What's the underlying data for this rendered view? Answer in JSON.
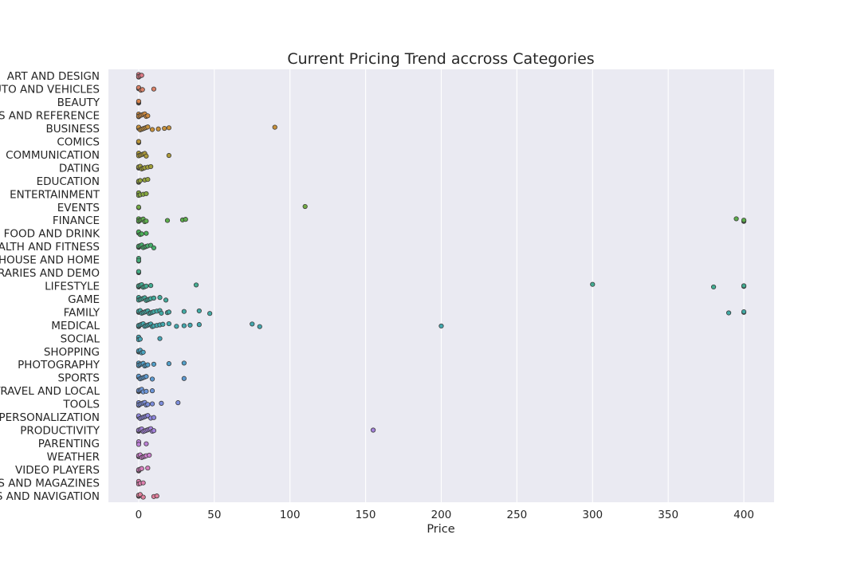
{
  "chart_data": {
    "type": "scatter",
    "title": "Current Pricing Trend accross Categories",
    "xlabel": "Price",
    "ylabel": "",
    "xlim": [
      -20,
      420
    ],
    "x_ticks": [
      0,
      50,
      100,
      150,
      200,
      250,
      300,
      350,
      400
    ],
    "grid": true,
    "legend": "none",
    "categories": [
      {
        "name": "ART AND DESIGN",
        "color": "#dd7a86",
        "values": [
          0,
          0,
          0,
          1.0,
          2.0
        ]
      },
      {
        "name": "AUTO AND VEHICLES",
        "color": "#dc8268",
        "values": [
          0,
          0,
          0,
          1.5,
          2.5,
          10
        ]
      },
      {
        "name": "BEAUTY",
        "color": "#d7844d",
        "values": [
          0,
          0,
          0,
          0
        ]
      },
      {
        "name": "BOOKS AND REFERENCE",
        "color": "#cf8a3f",
        "values": [
          0,
          0,
          0,
          1,
          2,
          3,
          4,
          5,
          6
        ]
      },
      {
        "name": "BUSINESS",
        "color": "#c8913a",
        "values": [
          0,
          0,
          0,
          1,
          2,
          3,
          4,
          5,
          6,
          9,
          13,
          17,
          20,
          90
        ]
      },
      {
        "name": "COMICS",
        "color": "#bb9639",
        "values": [
          0,
          0,
          0
        ]
      },
      {
        "name": "COMMUNICATION",
        "color": "#ad9a39",
        "values": [
          0,
          0,
          0,
          1,
          2,
          3,
          4,
          5,
          20
        ]
      },
      {
        "name": "DATING",
        "color": "#a09e3a",
        "values": [
          0,
          0,
          0,
          1,
          2,
          3,
          4,
          6,
          8
        ]
      },
      {
        "name": "EDUCATION",
        "color": "#93a33c",
        "values": [
          0,
          0,
          0,
          1,
          4,
          6
        ]
      },
      {
        "name": "ENTERTAINMENT",
        "color": "#84a63f",
        "values": [
          0,
          0,
          0,
          1,
          3,
          5
        ]
      },
      {
        "name": "EVENTS",
        "color": "#73aa45",
        "values": [
          0,
          0,
          110
        ]
      },
      {
        "name": "FINANCE",
        "color": "#5dad4c",
        "values": [
          0,
          0,
          0,
          1,
          2,
          3,
          4,
          5,
          19,
          29,
          31,
          395,
          400,
          400,
          400
        ]
      },
      {
        "name": "FOOD AND DRINK",
        "color": "#4aaf58",
        "values": [
          0,
          0,
          0,
          1,
          2,
          5
        ]
      },
      {
        "name": "HEALTH AND FITNESS",
        "color": "#46ae6b",
        "values": [
          0,
          0,
          0,
          1,
          2,
          3,
          4,
          5,
          6,
          8,
          10
        ]
      },
      {
        "name": "HOUSE AND HOME",
        "color": "#45ad7a",
        "values": [
          0,
          0,
          0
        ]
      },
      {
        "name": "LIBRARIES AND DEMO",
        "color": "#44ad86",
        "values": [
          0,
          0,
          0
        ]
      },
      {
        "name": "LIFESTYLE",
        "color": "#43ac92",
        "values": [
          0,
          0,
          0,
          1,
          2,
          3,
          4,
          5,
          8,
          38,
          300,
          380,
          400,
          400
        ]
      },
      {
        "name": "GAME",
        "color": "#42ab9c",
        "values": [
          0,
          0,
          0,
          1,
          2,
          3,
          4,
          5,
          6,
          7,
          8,
          10,
          14,
          18
        ]
      },
      {
        "name": "FAMILY",
        "color": "#42aaa5",
        "values": [
          0,
          0,
          0,
          1,
          2,
          3,
          4,
          5,
          6,
          7,
          8,
          9,
          10,
          12,
          14,
          15,
          19,
          20,
          30,
          40,
          47,
          390,
          400,
          400
        ]
      },
      {
        "name": "MEDICAL",
        "color": "#43a8ae",
        "values": [
          0,
          0,
          0,
          1,
          2,
          3,
          4,
          5,
          6,
          7,
          8,
          9,
          10,
          12,
          14,
          16,
          20,
          25,
          30,
          34,
          40,
          75,
          80,
          200
        ]
      },
      {
        "name": "SOCIAL",
        "color": "#46a6b7",
        "values": [
          0,
          0,
          0,
          1,
          14
        ]
      },
      {
        "name": "SHOPPING",
        "color": "#4aa3c0",
        "values": [
          0,
          0,
          0,
          1,
          2,
          3
        ]
      },
      {
        "name": "PHOTOGRAPHY",
        "color": "#529fc9",
        "values": [
          0,
          0,
          0,
          1,
          2,
          3,
          4,
          5,
          6,
          10,
          20,
          30
        ]
      },
      {
        "name": "SPORTS",
        "color": "#5d9ad1",
        "values": [
          0,
          0,
          0,
          1,
          2,
          3,
          4,
          5,
          9,
          30
        ]
      },
      {
        "name": "TRAVEL AND LOCAL",
        "color": "#6c95d8",
        "values": [
          0,
          0,
          0,
          1,
          2,
          3,
          5,
          9
        ]
      },
      {
        "name": "TOOLS",
        "color": "#7d8edd",
        "values": [
          0,
          0,
          0,
          1,
          2,
          3,
          4,
          5,
          6,
          9,
          15,
          26
        ]
      },
      {
        "name": "PERSONALIZATION",
        "color": "#8f87de",
        "values": [
          0,
          0,
          0,
          1,
          2,
          3,
          4,
          5,
          6,
          8,
          10
        ]
      },
      {
        "name": "PRODUCTIVITY",
        "color": "#a582dc",
        "values": [
          0,
          0,
          0,
          1,
          2,
          3,
          4,
          5,
          6,
          7,
          8,
          9,
          10,
          155
        ]
      },
      {
        "name": "PARENTING",
        "color": "#bb80d6",
        "values": [
          0,
          0,
          0,
          5
        ]
      },
      {
        "name": "WEATHER",
        "color": "#cc7fcd",
        "values": [
          0,
          0,
          0,
          1,
          2,
          3,
          4,
          5,
          7
        ]
      },
      {
        "name": "VIDEO PLAYERS",
        "color": "#d77fbf",
        "values": [
          0,
          0,
          0,
          1,
          2,
          6
        ]
      },
      {
        "name": "NEWS AND MAGAZINES",
        "color": "#dd7fae",
        "values": [
          0,
          0,
          0,
          1,
          3
        ]
      },
      {
        "name": "MAPS AND NAVIGATION",
        "color": "#df7f9c",
        "values": [
          0,
          0,
          0,
          1,
          3,
          10,
          12
        ]
      }
    ]
  }
}
